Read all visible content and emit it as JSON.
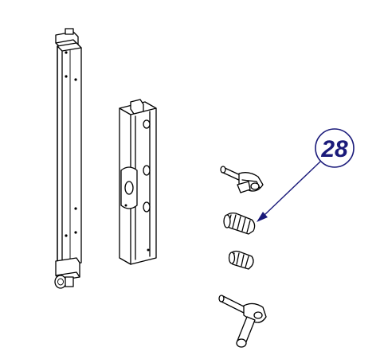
{
  "callout": {
    "label": "28",
    "color": "#1a1a7a"
  },
  "parts": [
    {
      "icon": "vertical-rail-part"
    },
    {
      "icon": "channel-bracket-part"
    },
    {
      "icon": "pin-with-lever-part"
    },
    {
      "icon": "spring-part"
    },
    {
      "icon": "small-spring-part"
    },
    {
      "icon": "handle-lever-part"
    }
  ]
}
